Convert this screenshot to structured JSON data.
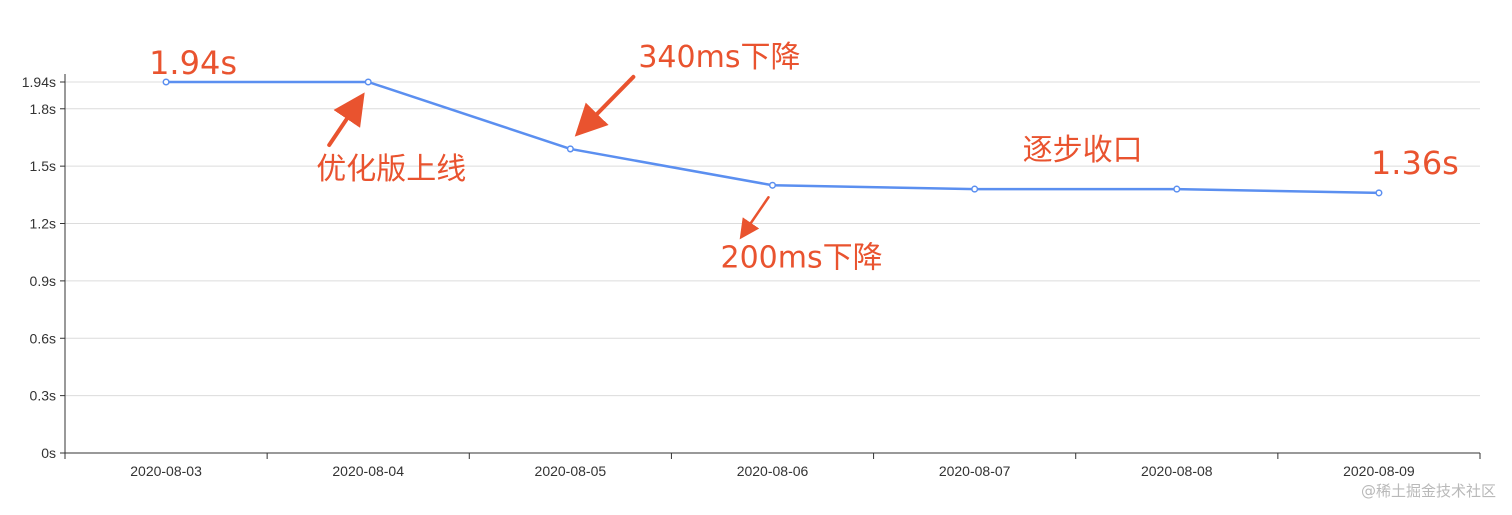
{
  "chart_data": {
    "type": "line",
    "categories": [
      "2020-08-03",
      "2020-08-04",
      "2020-08-05",
      "2020-08-06",
      "2020-08-07",
      "2020-08-08",
      "2020-08-09"
    ],
    "series": [
      {
        "values": [
          1.94,
          1.94,
          1.59,
          1.4,
          1.38,
          1.38,
          1.36
        ]
      }
    ],
    "y_ticks": [
      {
        "value": 0,
        "label": "0s"
      },
      {
        "value": 0.3,
        "label": "0.3s"
      },
      {
        "value": 0.6,
        "label": "0.6s"
      },
      {
        "value": 0.9,
        "label": "0.9s"
      },
      {
        "value": 1.2,
        "label": "1.2s"
      },
      {
        "value": 1.5,
        "label": "1.5s"
      },
      {
        "value": 1.8,
        "label": "1.8s"
      },
      {
        "value": 1.94,
        "label": "1.94s"
      }
    ],
    "ylim": [
      0,
      1.94
    ],
    "grid": true,
    "line_color": "#5b8ff0",
    "annotations": [
      {
        "text": "1.94s"
      },
      {
        "text": "优化版上线"
      },
      {
        "text": "340ms下降"
      },
      {
        "text": "200ms下降"
      },
      {
        "text": "逐步收口"
      },
      {
        "text": "1.36s"
      }
    ],
    "annotation_color": "#e9532f"
  },
  "watermark": "@稀土掘金技术社区"
}
